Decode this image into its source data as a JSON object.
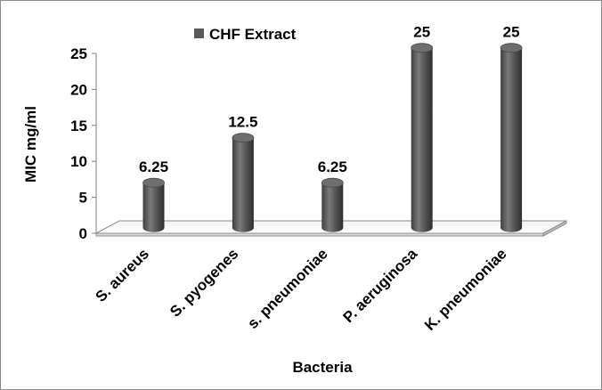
{
  "chart_data": {
    "type": "bar",
    "categories": [
      "S. aureus",
      "S. pyogenes",
      "s. pneumoniae",
      "P. aeruginosa",
      "K. pneumoniae"
    ],
    "series": [
      {
        "name": "CHF Extract",
        "values": [
          6.25,
          12.5,
          6.25,
          25,
          25
        ],
        "color": "#595959"
      }
    ],
    "data_labels": [
      "6.25",
      "12.5",
      "6.25",
      "25",
      "25"
    ],
    "xlabel": "Bacteria",
    "ylabel": "MIC mg/ml",
    "ylim": [
      0,
      25
    ],
    "yticks": [
      "0",
      "5",
      "10",
      "15",
      "20",
      "25"
    ],
    "grid": false,
    "legend_position": "top",
    "style": "3d-cylinder"
  }
}
